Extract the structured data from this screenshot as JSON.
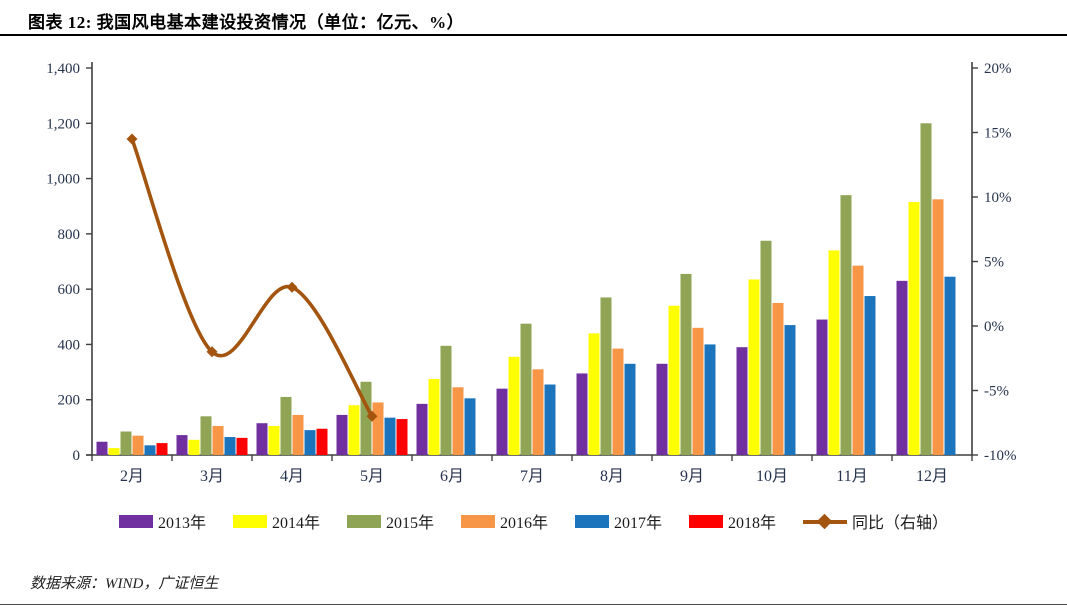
{
  "header": {
    "title": "图表 12: 我国风电基本建设投资情况（单位：亿元、%）"
  },
  "footer": {
    "source": "数据来源：WIND，广证恒生"
  },
  "chart_data": {
    "type": "bar",
    "subtype": "grouped-bars-with-line-on-secondary-axis",
    "title": "我国风电基本建设投资情况",
    "units": "亿元、%",
    "categories": [
      "2月",
      "3月",
      "4月",
      "5月",
      "6月",
      "7月",
      "8月",
      "9月",
      "10月",
      "11月",
      "12月"
    ],
    "series": [
      {
        "name": "2013年",
        "color": "#7030A0",
        "values": [
          48,
          72,
          115,
          145,
          185,
          240,
          295,
          330,
          390,
          490,
          630
        ]
      },
      {
        "name": "2014年",
        "color": "#FFFF00",
        "values": [
          25,
          55,
          105,
          180,
          275,
          355,
          440,
          540,
          635,
          740,
          915
        ]
      },
      {
        "name": "2015年",
        "color": "#8FA454",
        "values": [
          85,
          140,
          210,
          265,
          395,
          475,
          570,
          655,
          775,
          940,
          1200
        ]
      },
      {
        "name": "2016年",
        "color": "#F79646",
        "values": [
          70,
          105,
          145,
          190,
          245,
          310,
          385,
          460,
          550,
          685,
          925
        ]
      },
      {
        "name": "2017年",
        "color": "#1B74BC",
        "values": [
          35,
          65,
          90,
          135,
          205,
          255,
          330,
          400,
          470,
          575,
          645
        ]
      },
      {
        "name": "2018年",
        "color": "#FF0000",
        "values": [
          43,
          62,
          95,
          130,
          null,
          null,
          null,
          null,
          null,
          null,
          null
        ]
      }
    ],
    "line_series": {
      "name": "同比（右轴）",
      "color": "#A3540E",
      "axis": "right",
      "values": [
        14.5,
        -2,
        3,
        -7,
        null,
        null,
        null,
        null,
        null,
        null,
        null
      ]
    },
    "left_axis": {
      "min": 0,
      "max": 1400,
      "step": 200,
      "tick_labels": [
        "0",
        "200",
        "400",
        "600",
        "800",
        "1,000",
        "1,200",
        "1,400"
      ]
    },
    "right_axis": {
      "min": -10,
      "max": 20,
      "step": 5,
      "tick_labels": [
        "-10%",
        "-5%",
        "0%",
        "5%",
        "10%",
        "15%",
        "20%"
      ]
    },
    "grid": false,
    "legend_position": "bottom",
    "plot_bg": "#ffffff",
    "axis_color": "#3f3f3f",
    "tick_text_color": "#26334d"
  }
}
